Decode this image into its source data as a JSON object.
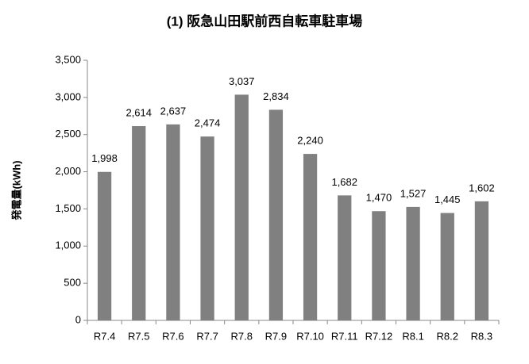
{
  "chart_data": {
    "type": "bar",
    "title": "(1) 阪急山田駅前西自転車駐車場",
    "y_label": "発電量(kWh)",
    "categories": [
      "R7.4",
      "R7.5",
      "R7.6",
      "R7.7",
      "R7.8",
      "R7.9",
      "R7.10",
      "R7.11",
      "R7.12",
      "R8.1",
      "R8.2",
      "R8.3"
    ],
    "values": [
      1998,
      2614,
      2637,
      2474,
      3037,
      2834,
      2240,
      1682,
      1470,
      1527,
      1445,
      1602
    ],
    "value_labels": [
      "1,998",
      "2,614",
      "2,637",
      "2,474",
      "3,037",
      "2,834",
      "2,240",
      "1,682",
      "1,470",
      "1,527",
      "1,445",
      "1,602"
    ],
    "color": "#808080",
    "ylim": [
      0,
      3500
    ],
    "yticks": [
      0,
      500,
      {
        "value": 1000,
        "label": "1,000"
      },
      {
        "value": 1500,
        "label": "1,500"
      },
      {
        "value": 2000,
        "label": "2,000"
      },
      {
        "value": 2500,
        "label": "2,500"
      },
      {
        "value": 3000,
        "label": "3,000"
      },
      {
        "value": 3500,
        "label": "3,500"
      }
    ],
    "grid": false
  }
}
